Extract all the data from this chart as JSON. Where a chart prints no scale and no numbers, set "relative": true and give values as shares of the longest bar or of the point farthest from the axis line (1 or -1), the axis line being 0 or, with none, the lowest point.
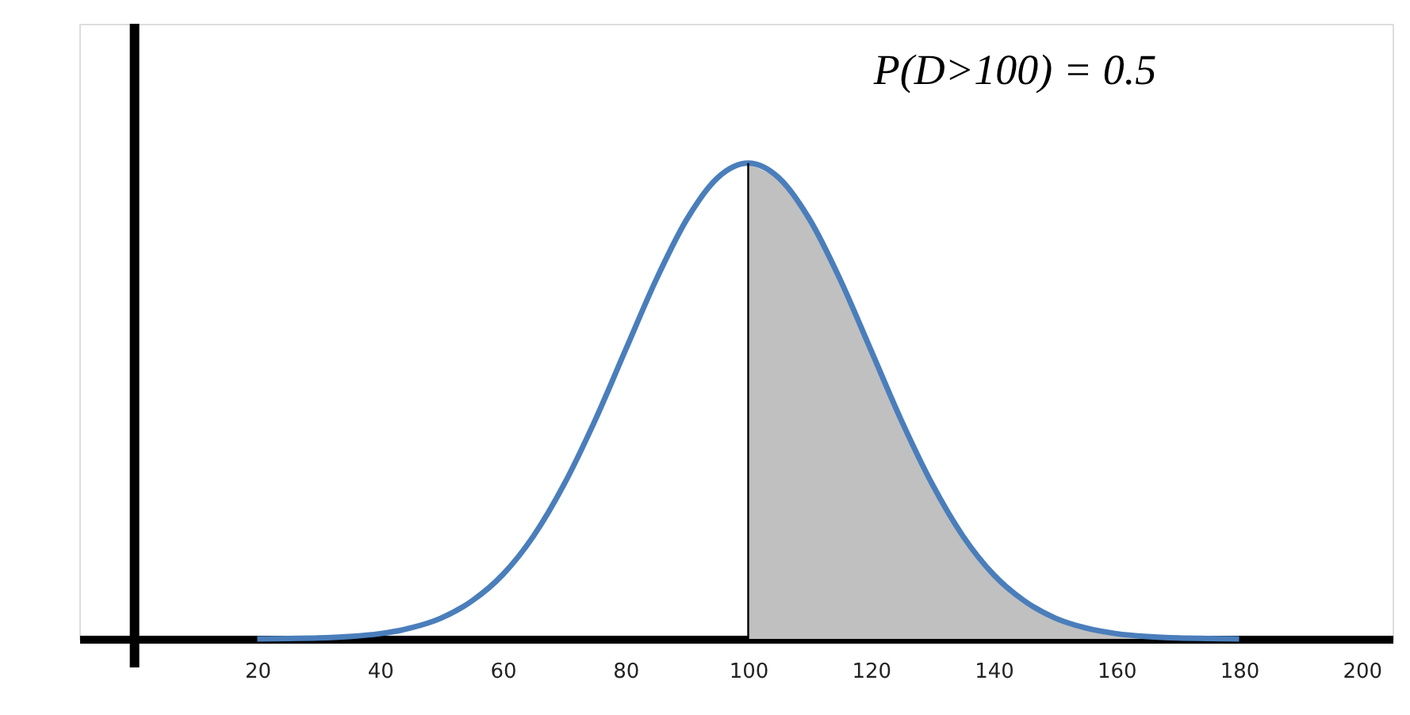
{
  "chart_data": {
    "type": "line",
    "relative": true,
    "xlim": [
      -9,
      205
    ],
    "xticks": [
      20,
      40,
      60,
      80,
      100,
      120,
      140,
      160,
      180,
      200
    ],
    "tick_labels": "x",
    "grid": false,
    "series": [
      {
        "type": "area",
        "color": "#c0c0c0",
        "x": [
          100,
          105,
          110,
          115,
          120,
          125,
          130,
          135,
          140,
          145,
          150,
          155,
          160,
          165,
          170,
          175,
          180
        ],
        "values": [
          1,
          0.969,
          0.882,
          0.755,
          0.607,
          0.458,
          0.325,
          0.216,
          0.135,
          0.08,
          0.044,
          0.023,
          0.011,
          0.005,
          0.002,
          0.001,
          0.0
        ]
      },
      {
        "type": "line",
        "color": "#4a7ebb",
        "x": [
          20,
          25,
          30,
          35,
          40,
          45,
          50,
          55,
          60,
          65,
          70,
          75,
          80,
          85,
          90,
          95,
          100,
          105,
          110,
          115,
          120,
          125,
          130,
          135,
          140,
          145,
          150,
          155,
          160,
          165,
          170,
          175,
          180
        ],
        "values": [
          0.0,
          0.001,
          0.002,
          0.005,
          0.011,
          0.023,
          0.044,
          0.08,
          0.135,
          0.216,
          0.325,
          0.458,
          0.607,
          0.755,
          0.882,
          0.969,
          1,
          0.969,
          0.882,
          0.755,
          0.607,
          0.458,
          0.325,
          0.216,
          0.135,
          0.08,
          0.044,
          0.023,
          0.011,
          0.005,
          0.002,
          0.001,
          0.0
        ]
      }
    ],
    "ref_lines": [
      {
        "axis": "x",
        "value": 0,
        "color": "#000000"
      },
      {
        "axis": "x",
        "value": 100,
        "color": "#000000"
      }
    ],
    "annotations": [
      "P(D>100) = 0.5"
    ]
  }
}
